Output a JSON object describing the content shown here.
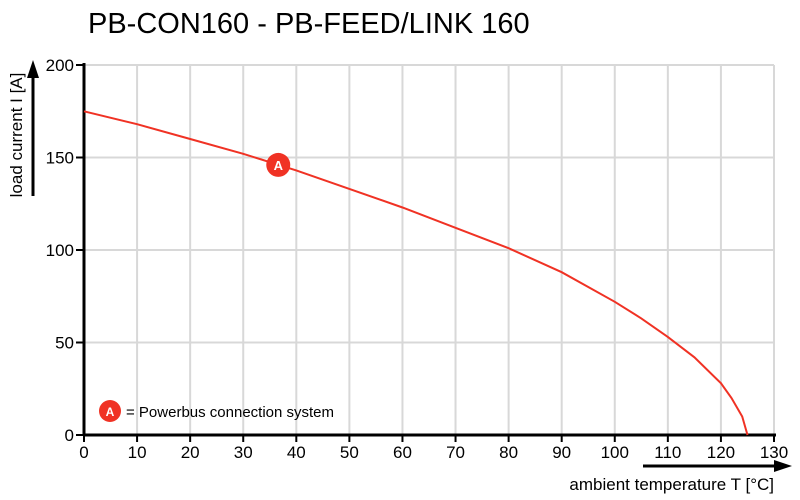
{
  "chart_data": {
    "type": "line",
    "title": "PB-CON160 - PB-FEED/LINK 160",
    "xlabel": "ambient temperature T [°C]",
    "ylabel": "load current I [A]",
    "xlim": [
      0,
      130
    ],
    "ylim": [
      0,
      200
    ],
    "xticks": [
      0,
      10,
      20,
      30,
      40,
      50,
      60,
      70,
      80,
      90,
      100,
      110,
      120,
      130
    ],
    "yticks": [
      0,
      50,
      100,
      150,
      200
    ],
    "grid": true,
    "series": [
      {
        "color": "#f03224",
        "x": [
          0,
          10,
          20,
          30,
          40,
          50,
          60,
          70,
          80,
          90,
          100,
          105,
          110,
          115,
          120,
          122,
          124,
          125
        ],
        "y": [
          175,
          168,
          160,
          152,
          143,
          133,
          123,
          112,
          101,
          88,
          72,
          63,
          53,
          42,
          28,
          20,
          10,
          0
        ]
      }
    ],
    "annotations": [
      {
        "label": "A",
        "x": 36.6,
        "y": 146,
        "color": "#f03224"
      }
    ],
    "legend": {
      "marker": "A",
      "text": "= Powerbus connection system",
      "placement": "bottom-left"
    }
  }
}
